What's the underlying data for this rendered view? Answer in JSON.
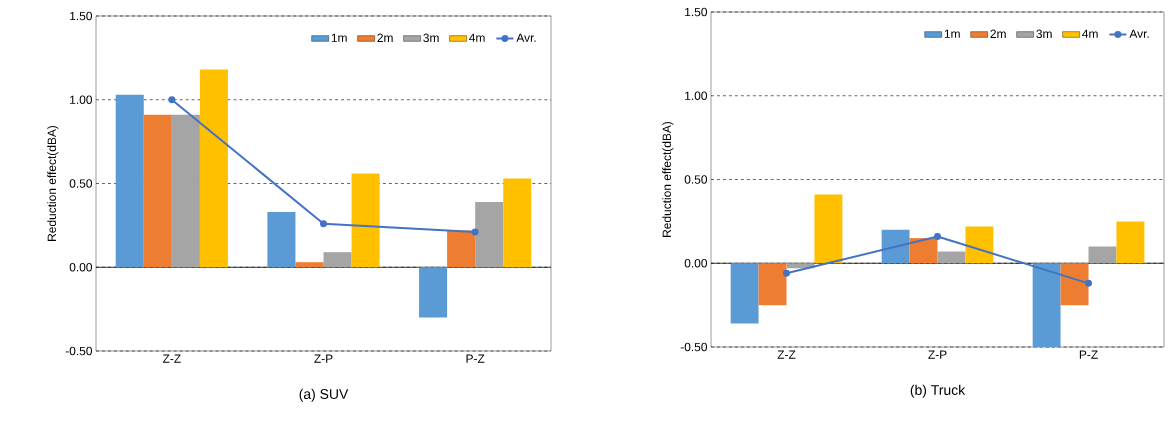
{
  "chart_data": [
    {
      "type": "bar",
      "title": "(a) SUV",
      "ylabel": "Reduction effect(dBA)",
      "categories": [
        "Z-Z",
        "Z-P",
        "P-Z"
      ],
      "series": [
        {
          "name": "1m",
          "color": "#5b9bd5",
          "values": [
            1.03,
            0.33,
            -0.3
          ]
        },
        {
          "name": "2m",
          "color": "#ed7d31",
          "values": [
            0.91,
            0.03,
            0.22
          ]
        },
        {
          "name": "3m",
          "color": "#a5a5a5",
          "values": [
            0.91,
            0.09,
            0.39
          ]
        },
        {
          "name": "4m",
          "color": "#ffc000",
          "values": [
            1.18,
            0.56,
            0.53
          ]
        },
        {
          "name": "Avr.",
          "type": "line",
          "marker": "circle",
          "color": "#4472c4",
          "values": [
            1.0,
            0.26,
            0.21
          ]
        }
      ],
      "ylim": [
        -0.5,
        1.5
      ],
      "yticks": [
        {
          "value": -0.5,
          "label": "-0.50"
        },
        {
          "value": 0,
          "label": "0.00"
        },
        {
          "value": 0.5,
          "label": "0.50"
        },
        {
          "value": 1,
          "label": "1.00"
        },
        {
          "value": 1.5,
          "label": "1.50"
        }
      ],
      "grid": "y",
      "legend": "top right",
      "ref_lines": [
        {
          "axis": "y",
          "value": 0,
          "color": "#000000"
        }
      ]
    },
    {
      "type": "bar",
      "title": "(b) Truck",
      "ylabel": "Reduction effect(dBA)",
      "categories": [
        "Z-Z",
        "Z-P",
        "P-Z"
      ],
      "series": [
        {
          "name": "1m",
          "color": "#5b9bd5",
          "values": [
            -0.36,
            0.2,
            -0.5
          ]
        },
        {
          "name": "2m",
          "color": "#ed7d31",
          "values": [
            -0.25,
            0.15,
            -0.25
          ]
        },
        {
          "name": "3m",
          "color": "#a5a5a5",
          "values": [
            -0.03,
            0.07,
            0.1
          ]
        },
        {
          "name": "4m",
          "color": "#ffc000",
          "values": [
            0.41,
            0.22,
            0.25
          ]
        },
        {
          "name": "Avr.",
          "type": "line",
          "marker": "circle",
          "color": "#4472c4",
          "values": [
            -0.06,
            0.16,
            -0.12
          ]
        }
      ],
      "ylim": [
        -0.5,
        1.5
      ],
      "yticks": [
        {
          "value": -0.5,
          "label": "-0.50"
        },
        {
          "value": 0,
          "label": "0.00"
        },
        {
          "value": 0.5,
          "label": "0.50"
        },
        {
          "value": 1,
          "label": "1.00"
        },
        {
          "value": 1.5,
          "label": "1.50"
        }
      ],
      "grid": "y",
      "legend": "top right",
      "ref_lines": [
        {
          "axis": "y",
          "value": 0,
          "color": "#000000"
        }
      ]
    }
  ]
}
